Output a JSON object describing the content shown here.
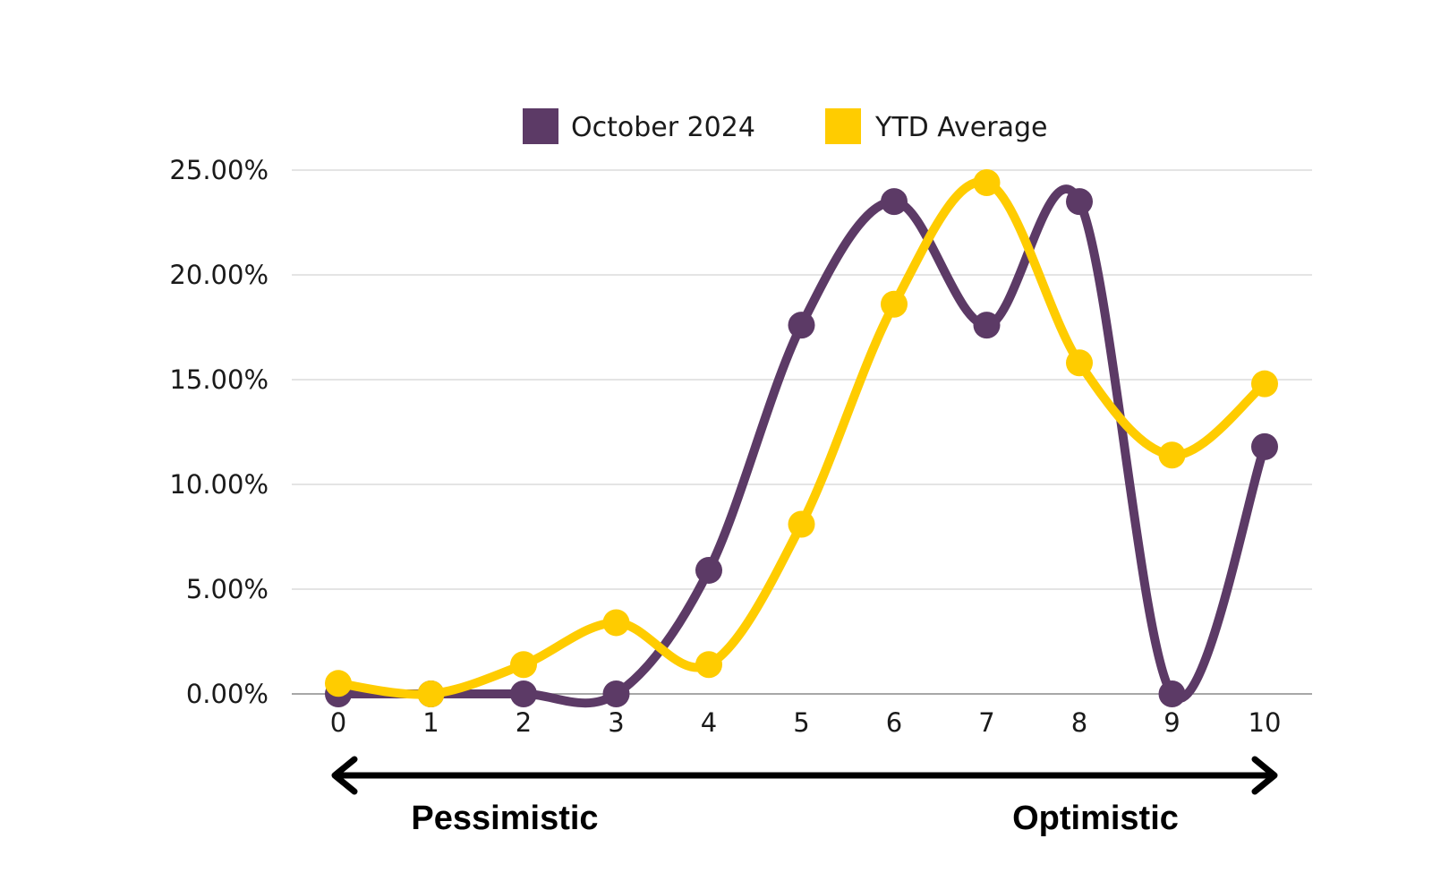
{
  "chart_data": {
    "type": "line",
    "title": "",
    "xlabel": "",
    "ylabel": "",
    "categories": [
      "0",
      "1",
      "2",
      "3",
      "4",
      "5",
      "6",
      "7",
      "8",
      "9",
      "10"
    ],
    "y_ticks": [
      "0.00%",
      "5.00%",
      "10.00%",
      "15.00%",
      "20.00%",
      "25.00%"
    ],
    "ylim": [
      0,
      25
    ],
    "grid": true,
    "legend_position": "top-center",
    "series": [
      {
        "name": "October 2024",
        "color": "#5c3a66",
        "values": [
          0.0,
          0.0,
          0.0,
          0.0,
          5.9,
          17.6,
          23.5,
          17.6,
          23.5,
          0.0,
          11.8
        ]
      },
      {
        "name": "YTD Average",
        "color": "#ffcc00",
        "values": [
          0.5,
          0.0,
          1.4,
          3.4,
          1.4,
          8.1,
          18.6,
          24.4,
          15.8,
          11.4,
          14.8
        ]
      }
    ],
    "scale_labels": {
      "left": "Pessimistic",
      "right": "Optimistic"
    }
  }
}
